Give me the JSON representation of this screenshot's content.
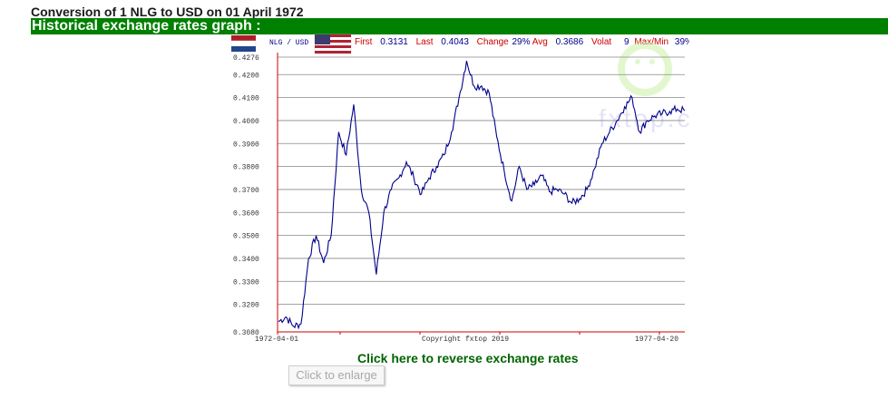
{
  "page": {
    "title": "Conversion of 1 NLG to USD on 01 April 1972",
    "section_heading": "Historical exchange rates graph :",
    "reverse_link": "Click here to reverse exchange rates",
    "enlarge_button": "Click to enlarge"
  },
  "legend": {
    "pair": "NLG / USD",
    "first_label": "First",
    "first_value": "0.3131",
    "last_label": "Last",
    "last_value": "0.4043",
    "change_label": "Change",
    "change_value": "29%",
    "avg_label": "Avg",
    "avg_value": "0.3686",
    "volat_label": "Volat",
    "volat_value": "9",
    "maxmin_label": "Max/Min",
    "maxmin_value": "39%"
  },
  "colors": {
    "header_bar": "#008000",
    "series_line": "#00008b",
    "axis": "#cc0000",
    "label_red": "#cc0000",
    "value_blue": "#00008b"
  },
  "icons": [
    "netherlands-flag-icon",
    "us-flag-icon",
    "fxtop-watermark-logo"
  ],
  "watermark_text": "fxtop.com",
  "copyright": "Copyright fxtop 2019",
  "chart_data": {
    "type": "line",
    "series": [
      {
        "name": "NLG / USD",
        "x": [
          "1972-04",
          "1972-07",
          "1972-10",
          "1973-01",
          "1973-02",
          "1973-03",
          "1973-04",
          "1973-05",
          "1973-06",
          "1973-07",
          "1973-08",
          "1973-09",
          "1973-10",
          "1973-11",
          "1973-12",
          "1974-01",
          "1974-02",
          "1974-03",
          "1974-04",
          "1974-05",
          "1974-06",
          "1974-07",
          "1974-08",
          "1974-09",
          "1974-10",
          "1974-11",
          "1974-12",
          "1975-01",
          "1975-02",
          "1975-03",
          "1975-04",
          "1975-05",
          "1975-06",
          "1975-07",
          "1975-08",
          "1975-09",
          "1975-10",
          "1975-11",
          "1975-12",
          "1976-01",
          "1976-02",
          "1976-03",
          "1976-04",
          "1976-05",
          "1976-06",
          "1976-07",
          "1976-08",
          "1976-09",
          "1976-10",
          "1976-11",
          "1976-12",
          "1977-01",
          "1977-02",
          "1977-03",
          "1977-04"
        ],
        "values": [
          0.3125,
          0.3145,
          0.3105,
          0.3115,
          0.34,
          0.35,
          0.338,
          0.35,
          0.395,
          0.385,
          0.407,
          0.37,
          0.36,
          0.333,
          0.36,
          0.37,
          0.375,
          0.382,
          0.375,
          0.368,
          0.375,
          0.38,
          0.385,
          0.395,
          0.41,
          0.426,
          0.415,
          0.415,
          0.412,
          0.393,
          0.378,
          0.365,
          0.38,
          0.37,
          0.372,
          0.376,
          0.369,
          0.37,
          0.368,
          0.364,
          0.366,
          0.37,
          0.379,
          0.39,
          0.395,
          0.4,
          0.406,
          0.41,
          0.395,
          0.4,
          0.402,
          0.403,
          0.404,
          0.405,
          0.4043
        ]
      }
    ],
    "y_ticks": [
      0.308,
      0.32,
      0.33,
      0.34,
      0.35,
      0.36,
      0.37,
      0.38,
      0.39,
      0.4,
      0.41,
      0.42,
      0.4276
    ],
    "y_tick_labels": [
      "0.3080",
      "0.3200",
      "0.3300",
      "0.3400",
      "0.3500",
      "0.3600",
      "0.3700",
      "0.3800",
      "0.3900",
      "0.4000",
      "0.4100",
      "0.4200",
      "0.4276"
    ],
    "ylim": [
      0.308,
      0.4276
    ],
    "x_tick_labels": [
      "1972-04-01",
      "1977-04-20"
    ],
    "grid": "horizontal",
    "xlabel": "",
    "ylabel": ""
  }
}
